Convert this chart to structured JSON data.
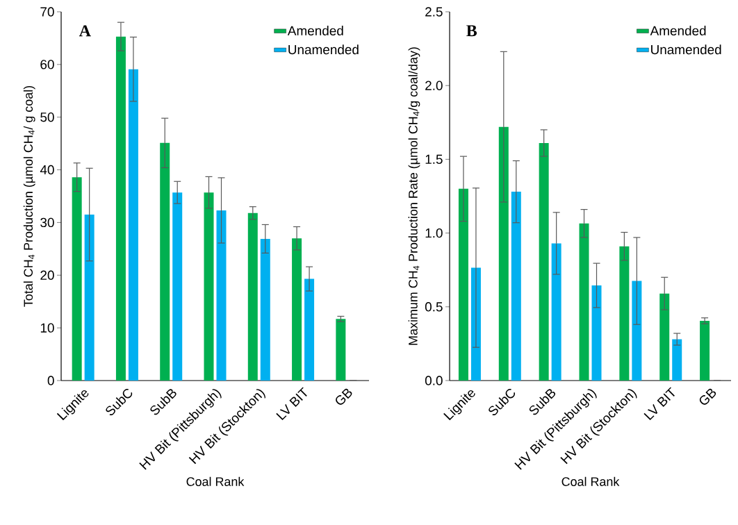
{
  "chart_data": [
    {
      "type": "bar",
      "annotations": [
        "A"
      ],
      "xlabel": "Coal Rank",
      "ylabel": "Total CH$_{4}$ Production  (µmol CH$_{4}$/ g coal)",
      "categories": [
        "Lignite",
        "SubC",
        "SubB",
        "HV Bit (Pittsburgh)",
        "HV Bit (Stockton)",
        "LV BIT",
        "GB"
      ],
      "series": [
        {
          "name": "Amended",
          "color": "#00b050",
          "values": [
            38.6,
            65.3,
            45.1,
            35.7,
            31.8,
            27.0,
            11.7
          ],
          "errors": [
            2.7,
            2.7,
            4.7,
            3.0,
            1.2,
            2.2,
            0.5
          ]
        },
        {
          "name": "Unamended",
          "color": "#00b0f0",
          "values": [
            31.5,
            59.1,
            35.7,
            32.3,
            26.9,
            19.3,
            0
          ],
          "errors": [
            8.8,
            6.1,
            2.1,
            6.2,
            2.7,
            2.3,
            null
          ]
        }
      ],
      "ylim": [
        0,
        70
      ],
      "yticks": [
        0,
        10,
        20,
        30,
        40,
        50,
        60,
        70
      ],
      "grid": false,
      "legend": "top right"
    },
    {
      "type": "bar",
      "annotations": [
        "B"
      ],
      "xlabel": "Coal Rank",
      "ylabel": "Maximum CH$_{4}$ Production Rate (µmol CH$_{4}$/g coal/day)",
      "categories": [
        "Lignite",
        "SubC",
        "SubB",
        "HV Bit (Pittsburgh)",
        "HV Bit (Stockton)",
        "LV BIT",
        "GB"
      ],
      "series": [
        {
          "name": "Amended",
          "color": "#00b050",
          "values": [
            1.3,
            1.72,
            1.61,
            1.065,
            0.91,
            0.59,
            0.405
          ],
          "errors": [
            0.22,
            0.51,
            0.09,
            0.095,
            0.095,
            0.11,
            0.02
          ]
        },
        {
          "name": "Unamended",
          "color": "#00b0f0",
          "values": [
            0.765,
            1.28,
            0.93,
            0.645,
            0.675,
            0.28,
            0
          ],
          "errors": [
            0.54,
            0.21,
            0.21,
            0.15,
            0.295,
            0.04,
            null
          ]
        }
      ],
      "ylim": [
        0,
        2.5
      ],
      "yticks": [
        {
          "value": 0,
          "label": "0.0"
        },
        {
          "value": 0.5,
          "label": "0.5"
        },
        {
          "value": 1,
          "label": "1.0"
        },
        {
          "value": 1.5,
          "label": "1.5"
        },
        {
          "value": 2,
          "label": "2.0"
        },
        {
          "value": 2.5,
          "label": "2.5"
        }
      ],
      "grid": false,
      "legend": "top right"
    }
  ]
}
